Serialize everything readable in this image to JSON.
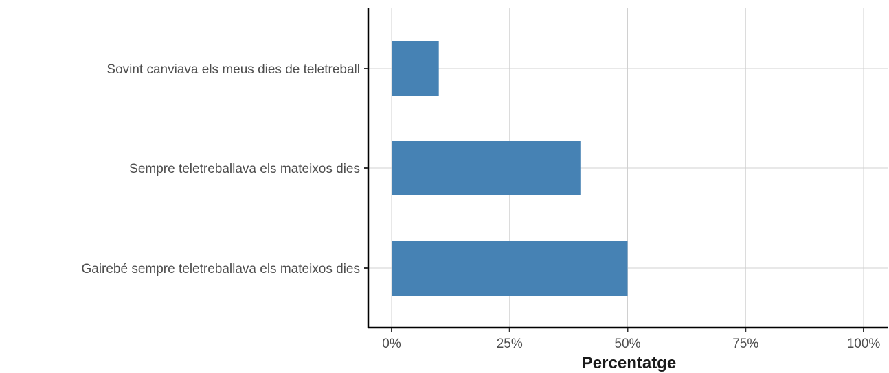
{
  "chart_data": {
    "type": "bar",
    "orientation": "horizontal",
    "categories": [
      "Sovint canviava els meus dies de teletreball",
      "Sempre teletreballava els mateixos dies",
      "Gairebé sempre teletreballava els mateixos dies"
    ],
    "values": [
      10,
      40,
      50
    ],
    "xlabel": "Percentatge",
    "ylabel": "",
    "xlim": [
      0,
      100
    ],
    "x_ticks": [
      0,
      25,
      50,
      75,
      100
    ],
    "x_tick_labels": [
      "0%",
      "25%",
      "50%",
      "75%",
      "100%"
    ],
    "grid": true,
    "bar_color": "#4682b4"
  }
}
